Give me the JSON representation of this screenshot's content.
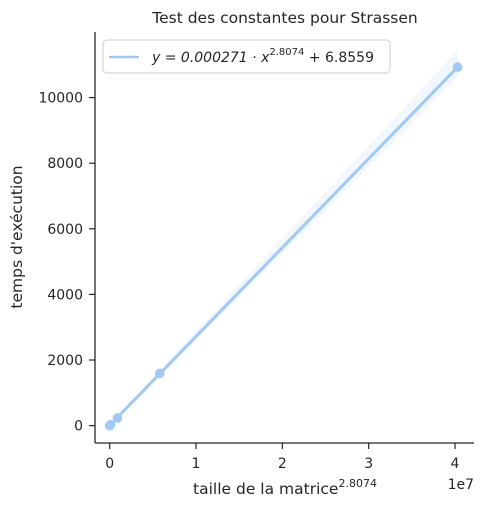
{
  "chart_data": {
    "type": "scatter",
    "title": "Test des constantes pour Strassen",
    "xlabel": "taille de la matrice",
    "xlabel_superscript": "2.8074",
    "ylabel": "temps d'exécution",
    "x_scale_label": "1e7",
    "xlim": [
      -1700000,
      42200000
    ],
    "ylim": [
      -530,
      12000
    ],
    "x_ticks": [
      0,
      10000000,
      20000000,
      30000000,
      40000000
    ],
    "x_tick_labels": [
      "0",
      "1",
      "2",
      "3",
      "4"
    ],
    "y_ticks": [
      0,
      2000,
      4000,
      6000,
      8000,
      10000
    ],
    "y_tick_labels": [
      "0",
      "2000",
      "4000",
      "6000",
      "8000",
      "10000"
    ],
    "grid": false,
    "legend_position": "top-left",
    "series": [
      {
        "label_prefix": "y = 0.000271 · x",
        "label_exponent": "2.8074",
        "label_suffix": " + 6.8559",
        "color": "#a1c9f4",
        "points": [
          {
            "x": 0,
            "y": 0
          },
          {
            "x": 100000,
            "y": 25
          },
          {
            "x": 900000,
            "y": 230
          },
          {
            "x": 5800000,
            "y": 1590
          },
          {
            "x": 40300000,
            "y": 10930
          }
        ],
        "fit_line": {
          "slope": 0.000271,
          "intercept": 6.8559
        }
      }
    ]
  }
}
